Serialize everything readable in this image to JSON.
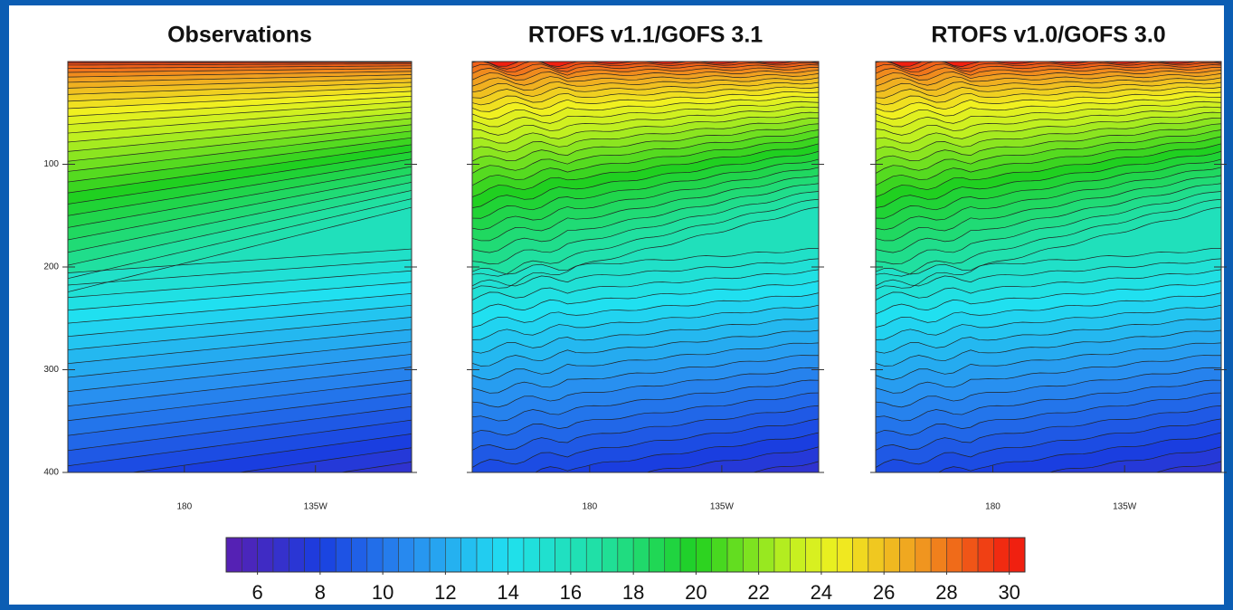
{
  "chart_data": [
    {
      "type": "contour",
      "title": "Observations",
      "xlim": [
        140,
        258
      ],
      "xticks": [
        180,
        {
          "value": 225,
          "label": "135W"
        }
      ],
      "ylim": [
        400,
        0
      ],
      "yticks": [
        100,
        200,
        300,
        400
      ]
    },
    {
      "type": "contour",
      "title": "RTOFS v1.1/GOFS 3.1",
      "xlim": [
        140,
        258
      ],
      "xticks": [
        180,
        {
          "value": 225,
          "label": "135W"
        }
      ],
      "ylim": [
        400,
        0
      ]
    },
    {
      "type": "contour",
      "title": "RTOFS v1.0/GOFS 3.0",
      "xlim": [
        140,
        258
      ],
      "xticks": [
        180,
        {
          "value": 225,
          "label": "135W"
        }
      ],
      "ylim": [
        400,
        0
      ]
    },
    {
      "type": "colorbar",
      "xlim": [
        5,
        30.5
      ],
      "xticks": [
        6,
        8,
        10,
        12,
        14,
        16,
        18,
        20,
        22,
        24,
        26,
        28,
        30
      ]
    }
  ]
}
